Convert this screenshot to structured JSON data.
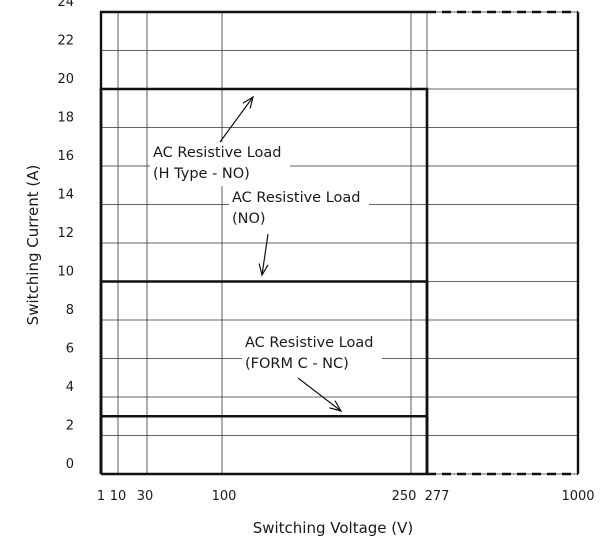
{
  "chart_data": {
    "type": "line",
    "xlabel": "Switching Voltage (V)",
    "ylabel": "Switching Current (A)",
    "x_ticks": [
      1,
      10,
      30,
      100,
      250,
      277,
      1000
    ],
    "x_tick_labels": [
      "1",
      "10",
      "30",
      "100",
      "250",
      "277",
      "1000"
    ],
    "y_ticks": [
      0,
      2,
      4,
      6,
      8,
      10,
      12,
      14,
      16,
      18,
      20,
      22,
      24
    ],
    "y_tick_labels": [
      "0",
      "2",
      "4",
      "6",
      "8",
      "10",
      "12",
      "14",
      "16",
      "18",
      "20",
      "22",
      "24"
    ],
    "xlim": [
      1,
      1000
    ],
    "ylim": [
      0,
      24
    ],
    "grid": true,
    "series": [
      {
        "name": "AC Resistive Load (H Type - NO)",
        "label_lines": [
          "AC Resistive Load",
          "(H Type - NO)"
        ],
        "points": [
          [
            1,
            0
          ],
          [
            1,
            20
          ],
          [
            277,
            20
          ],
          [
            277,
            0
          ]
        ]
      },
      {
        "name": "AC Resistive Load (NO)",
        "label_lines": [
          "AC Resistive Load",
          "(NO)"
        ],
        "points": [
          [
            1,
            0
          ],
          [
            1,
            10
          ],
          [
            277,
            10
          ],
          [
            277,
            0
          ]
        ]
      },
      {
        "name": "AC Resistive Load (FORM C - NC)",
        "label_lines": [
          "AC Resistive Load",
          "(FORM C - NC)"
        ],
        "points": [
          [
            1,
            0
          ],
          [
            1,
            3
          ],
          [
            277,
            3
          ],
          [
            277,
            0
          ]
        ]
      }
    ],
    "outline": {
      "points": [
        [
          1,
          0
        ],
        [
          1,
          24
        ],
        [
          277,
          24
        ]
      ],
      "dashed_extension": [
        [
          277,
          24
        ],
        [
          1000,
          24
        ]
      ],
      "dashed_bottom": [
        [
          277,
          0
        ],
        [
          1000,
          0
        ]
      ],
      "right_edge": [
        [
          1000,
          0
        ],
        [
          1000,
          24
        ]
      ]
    }
  }
}
